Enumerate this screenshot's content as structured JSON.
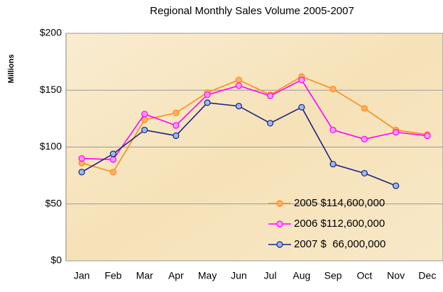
{
  "chart_data": {
    "type": "line",
    "title": "Regional Monthly Sales Volume 2005-2007",
    "y_label": "Millions",
    "categories": [
      "Jan",
      "Feb",
      "Mar",
      "Apr",
      "May",
      "Jun",
      "Jul",
      "Aug",
      "Sep",
      "Oct",
      "Nov",
      "Dec"
    ],
    "series": [
      {
        "name": "2005 $114,600,000",
        "color": "#ff8c1a",
        "values": [
          86,
          78,
          124,
          130,
          148,
          159,
          146,
          162,
          151,
          134,
          115,
          111
        ]
      },
      {
        "name": "2006 $112,600,000",
        "color": "#ff00ff",
        "values": [
          90,
          89,
          129,
          119,
          146,
          154,
          145,
          159,
          115,
          107,
          113,
          110
        ]
      },
      {
        "name": "2007 $  66,000,000",
        "color": "#1a237e",
        "values": [
          78,
          94,
          115,
          110,
          139,
          136,
          121,
          135,
          85,
          77,
          66,
          null
        ]
      }
    ],
    "ylim": [
      0,
      200
    ],
    "yticks": [
      {
        "value": 0,
        "label": "$0"
      },
      {
        "value": 50,
        "label": "$50"
      },
      {
        "value": 100,
        "label": "$100"
      },
      {
        "value": 150,
        "label": "$150"
      },
      {
        "value": 200,
        "label": "$200"
      }
    ],
    "grid": true,
    "legend": "lower right"
  }
}
